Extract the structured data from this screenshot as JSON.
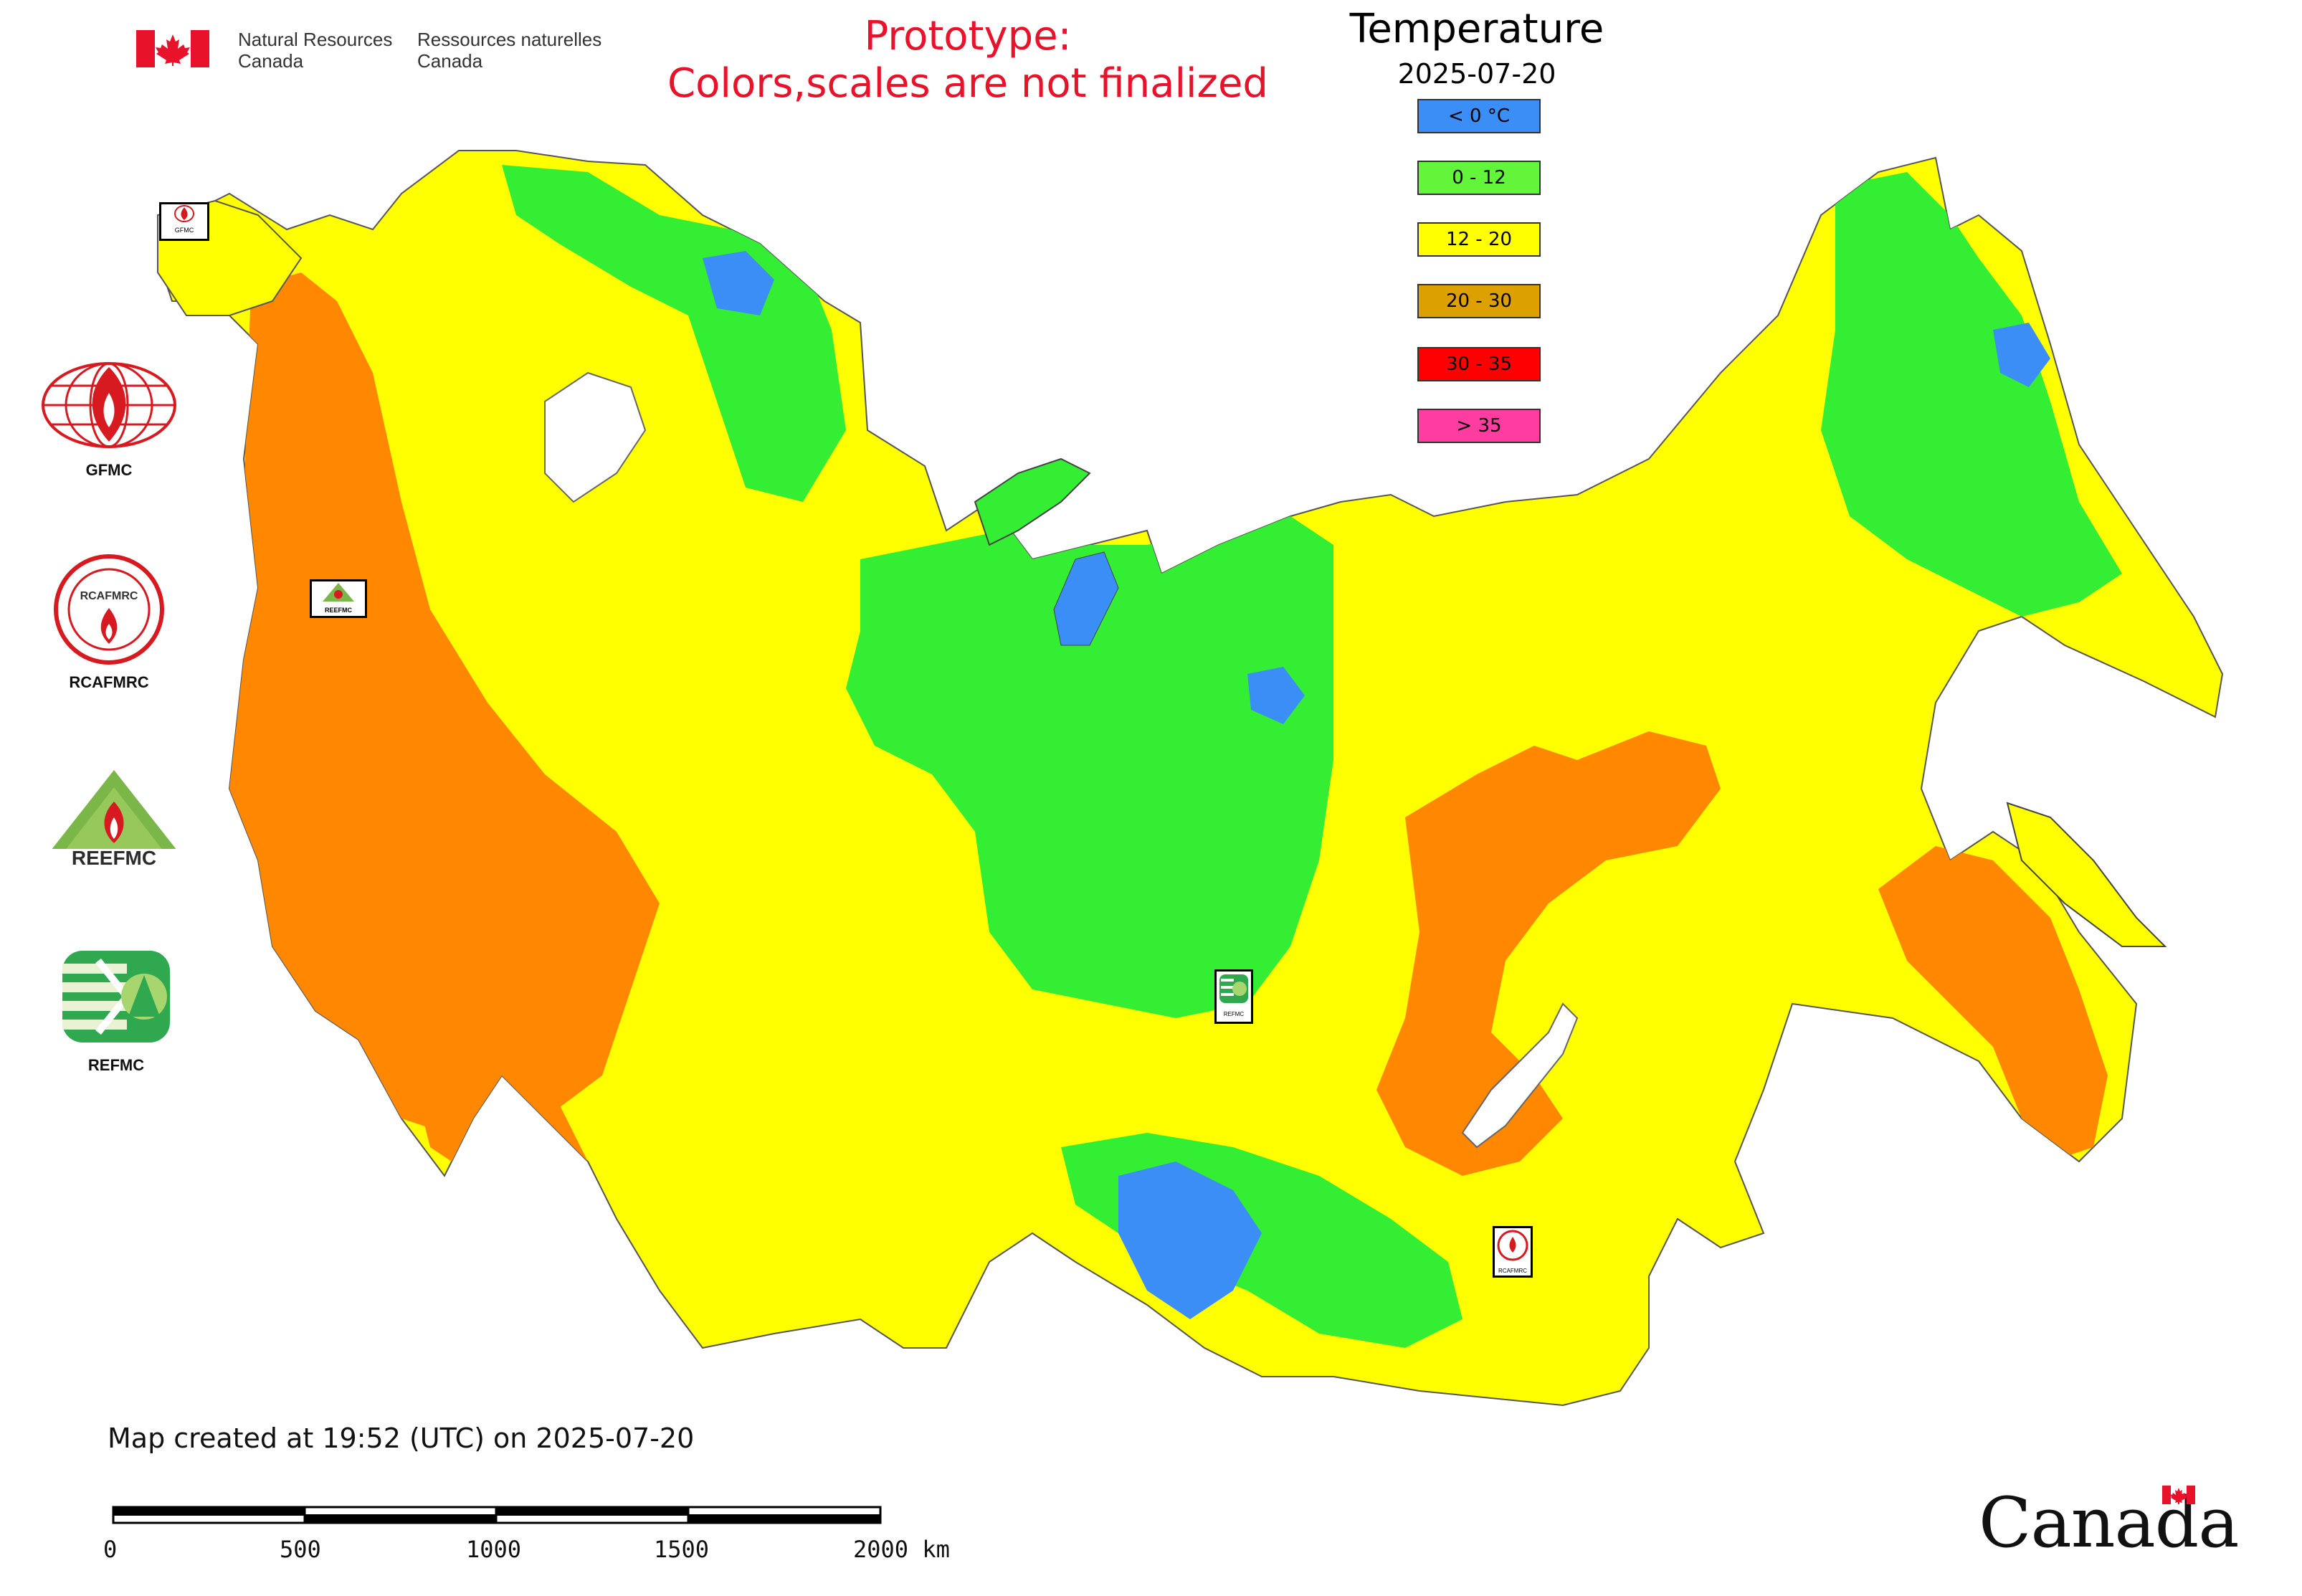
{
  "header": {
    "org_en_line1": "Natural Resources",
    "org_en_line2": "Canada",
    "org_fr_line1": "Ressources naturelles",
    "org_fr_line2": "Canada",
    "prototype_line1": "Prototype:",
    "prototype_line2": "Colors,scales are not finalized"
  },
  "legend": {
    "title": "Temperature",
    "date": "2025-07-20",
    "items": [
      {
        "label": "< 0 °C",
        "color": "#3a8ef5"
      },
      {
        "label": "0 - 12",
        "color": "#62f53a"
      },
      {
        "label": "12 - 20",
        "color": "#ffff00"
      },
      {
        "label": "20 - 30",
        "color": "#dca000"
      },
      {
        "label": "30 - 35",
        "color": "#ff0000"
      },
      {
        "label": "> 35",
        "color": "#ff3ca0"
      }
    ]
  },
  "map_colors": {
    "cold": "#3a8ef5",
    "cool": "#33ee33",
    "mild": "#ffff00",
    "warm": "#ff8800"
  },
  "side_logos": [
    {
      "label": "GFMC",
      "icon": "gfmc-logo-icon"
    },
    {
      "label": "RCAFMRC",
      "icon": "rcafmrc-logo-icon"
    },
    {
      "label": "REEFMC",
      "icon": "reefmc-logo-icon"
    },
    {
      "label": "REFMC",
      "icon": "refmc-logo-icon"
    }
  ],
  "map_markers": {
    "gfmc": "GFMC",
    "reefmc": "REEFMC",
    "refmc": "REFMC",
    "rcafmrc": "RCAFMRC"
  },
  "footer": {
    "created": "Map created at 19:52 (UTC) on 2025-07-20",
    "scale_labels": [
      "0",
      "500",
      "1000",
      "1500",
      "2000 km"
    ],
    "wordmark": "Canada"
  }
}
